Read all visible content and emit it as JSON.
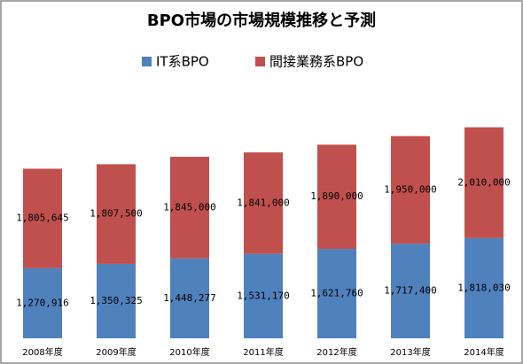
{
  "chart_data": {
    "type": "stacked_bar",
    "title": "BPO市場の市場規模推移と予測",
    "categories": [
      "2008年度",
      "2009年度",
      "2010年度",
      "2011年度",
      "2012年度",
      "2013年度",
      "2014年度"
    ],
    "series": [
      {
        "name": "IT系BPO",
        "color": "#4f81bd",
        "values": [
          1270916,
          1350325,
          1448277,
          1531170,
          1621760,
          1717400,
          1818030
        ],
        "value_labels": [
          "1,270,916",
          "1,350,325",
          "1,448,277",
          "1,531,170",
          "1,621,760",
          "1,717,400",
          "1,818,030"
        ]
      },
      {
        "name": "間接業務系BPO",
        "color": "#c0504d",
        "values": [
          1805645,
          1807500,
          1845000,
          1841000,
          1890000,
          1950000,
          2010000
        ],
        "value_labels": [
          "1,805,645",
          "1,807,500",
          "1,845,000",
          "1,841,000",
          "1,890,000",
          "1,950,000",
          "2,010,000"
        ]
      }
    ],
    "ylim": [
      0,
      4000000
    ]
  }
}
